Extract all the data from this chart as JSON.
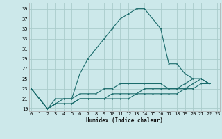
{
  "title": "",
  "xlabel": "Humidex (Indice chaleur)",
  "ylabel": "",
  "bg_color": "#cce8ea",
  "grid_color": "#aacccc",
  "line_color": "#1a6b6b",
  "x_ticks": [
    0,
    1,
    2,
    3,
    4,
    5,
    6,
    7,
    8,
    9,
    10,
    11,
    12,
    13,
    14,
    15,
    16,
    17,
    18,
    19,
    20,
    21,
    22,
    23
  ],
  "y_ticks": [
    19,
    21,
    23,
    25,
    27,
    29,
    31,
    33,
    35,
    37,
    39
  ],
  "xlim": [
    -0.3,
    23.3
  ],
  "ylim": [
    18.5,
    40.2
  ],
  "series": [
    [
      23,
      21,
      19,
      21,
      21,
      21,
      26,
      29,
      31,
      33,
      35,
      37,
      38,
      39,
      39,
      37,
      35,
      28,
      28,
      26,
      25,
      25,
      24
    ],
    [
      23,
      21,
      19,
      20,
      21,
      21,
      22,
      22,
      22,
      23,
      23,
      24,
      24,
      24,
      24,
      24,
      24,
      23,
      23,
      24,
      25,
      25,
      24
    ],
    [
      23,
      21,
      19,
      20,
      20,
      20,
      21,
      21,
      21,
      21,
      22,
      22,
      22,
      22,
      23,
      23,
      23,
      23,
      23,
      23,
      24,
      25,
      24
    ],
    [
      23,
      21,
      19,
      20,
      20,
      20,
      21,
      21,
      21,
      21,
      21,
      21,
      21,
      22,
      22,
      22,
      22,
      22,
      22,
      23,
      23,
      24,
      24
    ]
  ],
  "series_x": [
    0,
    1,
    2,
    3,
    4,
    5,
    6,
    7,
    8,
    9,
    10,
    11,
    12,
    13,
    14,
    15,
    16,
    17,
    18,
    19,
    20,
    21,
    22
  ]
}
